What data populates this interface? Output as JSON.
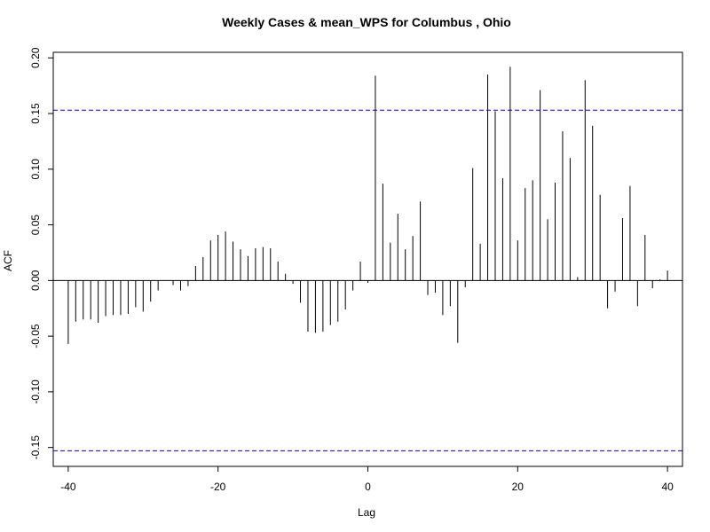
{
  "chart_data": {
    "type": "bar",
    "title": "Weekly Cases & mean_WPS for Columbus , Ohio",
    "xlabel": "Lag",
    "ylabel": "ACF",
    "xlim": [
      -42,
      42
    ],
    "ylim": [
      -0.167,
      0.205
    ],
    "x_ticks": [
      -40,
      -20,
      0,
      20,
      40
    ],
    "x_tick_labels": [
      "-40",
      "-20",
      "0",
      "20",
      "40"
    ],
    "y_ticks": [
      -0.15,
      -0.1,
      -0.05,
      0.0,
      0.05,
      0.1,
      0.15,
      0.2
    ],
    "y_tick_labels": [
      "-0.15",
      "-0.10",
      "-0.05",
      "0.00",
      "0.05",
      "0.10",
      "0.15",
      "0.20"
    ],
    "confidence_band": {
      "upper": 0.153,
      "lower": -0.153,
      "color": "#0000CC",
      "style": "dashed"
    },
    "zero_line": true,
    "grid": false,
    "bar_color": "#000000",
    "lags": [
      -40,
      -39,
      -38,
      -37,
      -36,
      -35,
      -34,
      -33,
      -32,
      -31,
      -30,
      -29,
      -28,
      -27,
      -26,
      -25,
      -24,
      -23,
      -22,
      -21,
      -20,
      -19,
      -18,
      -17,
      -16,
      -15,
      -14,
      -13,
      -12,
      -11,
      -10,
      -9,
      -8,
      -7,
      -6,
      -5,
      -4,
      -3,
      -2,
      -1,
      0,
      1,
      2,
      3,
      4,
      5,
      6,
      7,
      8,
      9,
      10,
      11,
      12,
      13,
      14,
      15,
      16,
      17,
      18,
      19,
      20,
      21,
      22,
      23,
      24,
      25,
      26,
      27,
      28,
      29,
      30,
      31,
      32,
      33,
      34,
      35,
      36,
      37,
      38,
      39,
      40
    ],
    "values": [
      -0.057,
      -0.037,
      -0.035,
      -0.035,
      -0.038,
      -0.032,
      -0.031,
      -0.031,
      -0.03,
      -0.024,
      -0.028,
      -0.019,
      -0.009,
      0.0,
      -0.004,
      -0.009,
      -0.005,
      0.013,
      0.021,
      0.036,
      0.041,
      0.044,
      0.035,
      0.028,
      0.022,
      0.029,
      0.03,
      0.029,
      0.017,
      0.006,
      -0.003,
      -0.02,
      -0.046,
      -0.047,
      -0.046,
      -0.04,
      -0.037,
      -0.026,
      -0.009,
      0.017,
      -0.002,
      0.184,
      0.087,
      0.034,
      0.06,
      0.028,
      0.04,
      0.071,
      -0.013,
      -0.011,
      -0.031,
      -0.023,
      -0.056,
      -0.006,
      0.101,
      0.033,
      0.185,
      0.152,
      0.092,
      0.192,
      0.036,
      0.083,
      0.09,
      0.171,
      0.055,
      0.088,
      0.134,
      0.11,
      0.003,
      0.18,
      0.139,
      0.077,
      -0.025,
      -0.01,
      0.056,
      0.085,
      -0.023,
      0.041,
      -0.007,
      0.001,
      0.009
    ]
  }
}
